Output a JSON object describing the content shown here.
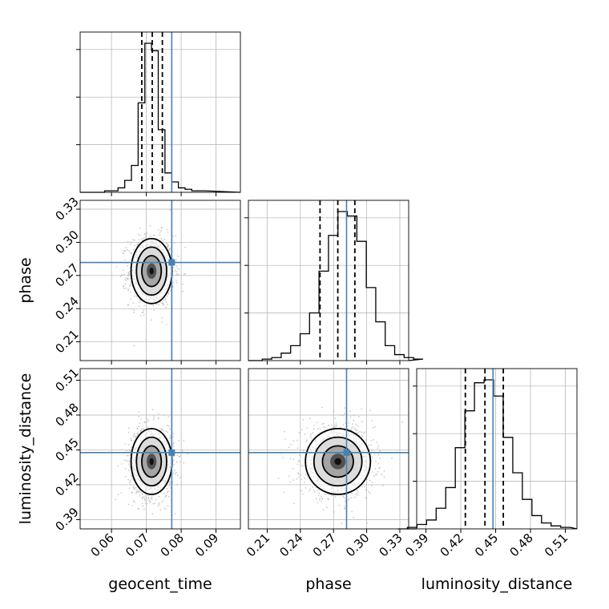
{
  "chart_data": {
    "type": "corner",
    "title": "",
    "grid": true,
    "colors": {
      "truth": "#4682b4",
      "hist": "#000000",
      "scatter": "#9a9a9a",
      "grid": "#b0b0b0"
    },
    "parameters": [
      {
        "name": "geocent_time",
        "range": [
          0.051,
          0.097
        ],
        "ticks": [
          0.06,
          0.07,
          0.08,
          0.09
        ],
        "tick_labels": [
          "0.06",
          "0.07",
          "0.08",
          "0.09"
        ],
        "truth": 0.0773,
        "quantiles": [
          0.0687,
          0.0717,
          0.0746
        ],
        "hist_values": [
          0,
          1,
          1,
          3,
          8,
          18,
          60,
          100,
          95,
          42,
          13,
          7,
          3,
          2,
          1,
          1
        ],
        "mean": 0.0715,
        "sd": 0.0028
      },
      {
        "name": "phase",
        "range": [
          0.193,
          0.338
        ],
        "ticks": [
          0.21,
          0.24,
          0.27,
          0.3,
          0.33
        ],
        "tick_labels": [
          "0.21",
          "0.24",
          "0.27",
          "0.30",
          "0.33"
        ],
        "truth": 0.2818,
        "quantiles": [
          0.2578,
          0.2739,
          0.2893
        ],
        "hist_values": [
          0,
          1,
          2,
          5,
          10,
          18,
          32,
          60,
          84,
          100,
          97,
          80,
          49,
          26,
          10,
          4,
          2,
          1
        ],
        "mean": 0.274,
        "sd": 0.014
      },
      {
        "name": "luminosity_distance",
        "range": [
          0.382,
          0.52
        ],
        "ticks": [
          0.39,
          0.42,
          0.45,
          0.48,
          0.51
        ],
        "tick_labels": [
          "0.39",
          "0.42",
          "0.45",
          "0.48",
          "0.51"
        ],
        "truth": 0.4477,
        "quantiles": [
          0.4239,
          0.4408,
          0.4566
        ],
        "hist_values": [
          0,
          1,
          3,
          6,
          14,
          28,
          55,
          80,
          99,
          101,
          90,
          62,
          38,
          20,
          9,
          4,
          2,
          1
        ],
        "mean": 0.44,
        "sd": 0.0135
      }
    ]
  }
}
